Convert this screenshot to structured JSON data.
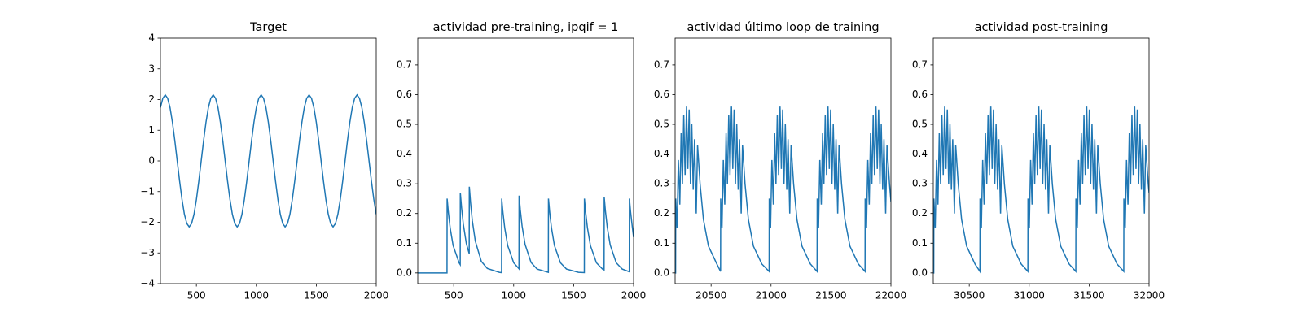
{
  "chart_data": [
    {
      "type": "line",
      "title": "Target",
      "color": "#1f77b4",
      "x": [
        200,
        220,
        240,
        260,
        280,
        300,
        320,
        340,
        360,
        380,
        400,
        420,
        440,
        460,
        480,
        500,
        520,
        540,
        560,
        580,
        600,
        620,
        640,
        660,
        680,
        700,
        720,
        740,
        760,
        780,
        800,
        820,
        840,
        860,
        880,
        900,
        920,
        940,
        960,
        980,
        1000,
        1020,
        1040,
        1060,
        1080,
        1100,
        1120,
        1140,
        1160,
        1180,
        1200,
        1220,
        1240,
        1260,
        1280,
        1300,
        1320,
        1340,
        1360,
        1380,
        1400,
        1420,
        1440,
        1460,
        1480,
        1500,
        1520,
        1540,
        1560,
        1580,
        1600,
        1620,
        1640,
        1660,
        1680,
        1700,
        1720,
        1740,
        1760,
        1780,
        1800,
        1820,
        1840,
        1860,
        1880,
        1900,
        1920,
        1940,
        1960,
        1980,
        2000
      ],
      "values": [
        1.74,
        2.04,
        2.15,
        2.04,
        1.74,
        1.26,
        0.66,
        0,
        -0.66,
        -1.26,
        -1.74,
        -2.04,
        -2.15,
        -2.04,
        -1.74,
        -1.26,
        -0.66,
        0,
        0.66,
        1.26,
        1.74,
        2.04,
        2.15,
        2.04,
        1.74,
        1.26,
        0.66,
        0,
        -0.66,
        -1.26,
        -1.74,
        -2.04,
        -2.15,
        -2.04,
        -1.74,
        -1.26,
        -0.66,
        0,
        0.66,
        1.26,
        1.74,
        2.04,
        2.15,
        2.04,
        1.74,
        1.26,
        0.66,
        0,
        -0.66,
        -1.26,
        -1.74,
        -2.04,
        -2.15,
        -2.04,
        -1.74,
        -1.26,
        -0.66,
        0,
        0.66,
        1.26,
        1.74,
        2.04,
        2.15,
        2.04,
        1.74,
        1.26,
        0.66,
        0,
        -0.66,
        -1.26,
        -1.74,
        -2.04,
        -2.15,
        -2.04,
        -1.74,
        -1.26,
        -0.66,
        0,
        0.66,
        1.26,
        1.74,
        2.04,
        2.15,
        2.04,
        1.74,
        1.26,
        0.66,
        0,
        -0.66,
        -1.26,
        -1.74
      ],
      "xlim": [
        200,
        2000
      ],
      "xticks": [
        500,
        1000,
        1500,
        2000
      ],
      "ylim": [
        -4,
        4
      ],
      "yticks": [
        {
          "value": -4,
          "label": "−4"
        },
        {
          "value": -3,
          "label": "−3"
        },
        {
          "value": -2,
          "label": "−2"
        },
        {
          "value": -1,
          "label": "−1"
        },
        0,
        1,
        2,
        3,
        4
      ]
    },
    {
      "type": "line",
      "title": "actividad pre-training, ipqif = 1",
      "color": "#1f77b4",
      "x": [
        200,
        444,
        445,
        455,
        470,
        495,
        545,
        554,
        555,
        565,
        580,
        605,
        629,
        630,
        640,
        655,
        680,
        730,
        780,
        880,
        899,
        900,
        910,
        925,
        950,
        1000,
        1044,
        1045,
        1055,
        1070,
        1095,
        1145,
        1195,
        1289,
        1290,
        1300,
        1315,
        1340,
        1390,
        1440,
        1540,
        1589,
        1590,
        1600,
        1615,
        1640,
        1690,
        1740,
        1754,
        1755,
        1765,
        1780,
        1805,
        1855,
        1905,
        1964,
        1965,
        1975,
        1990,
        2000
      ],
      "values": [
        0,
        0,
        0.25,
        0.205,
        0.152,
        0.092,
        0.034,
        0.028,
        0.27,
        0.221,
        0.164,
        0.099,
        0.065,
        0.29,
        0.238,
        0.176,
        0.107,
        0.039,
        0.015,
        0.002,
        0.001,
        0.25,
        0.205,
        0.152,
        0.092,
        0.034,
        0.014,
        0.26,
        0.213,
        0.158,
        0.096,
        0.035,
        0.013,
        0.002,
        0.25,
        0.205,
        0.152,
        0.092,
        0.034,
        0.013,
        0.002,
        0.001,
        0.25,
        0.205,
        0.152,
        0.092,
        0.034,
        0.013,
        0.01,
        0.255,
        0.209,
        0.155,
        0.094,
        0.034,
        0.013,
        0.004,
        0.25,
        0.205,
        0.152,
        0.12
      ],
      "xlim": [
        200,
        2000
      ],
      "xticks": [
        500,
        1000,
        1500,
        2000
      ],
      "ylim": [
        -0.036,
        0.79
      ],
      "yticks": [
        {
          "value": 0,
          "label": "0.0"
        },
        0.1,
        0.2,
        0.3,
        0.4,
        0.5,
        0.6,
        0.7
      ]
    },
    {
      "type": "line",
      "title": "actividad último loop de training",
      "color": "#1f77b4",
      "x": [
        20200,
        20204,
        20205,
        20216,
        20227,
        20239,
        20250,
        20261,
        20272,
        20283,
        20295,
        20306,
        20317,
        20328,
        20339,
        20351,
        20362,
        20376,
        20387,
        20408,
        20436,
        20478,
        20548,
        20579,
        20580,
        20591,
        20602,
        20614,
        20625,
        20636,
        20647,
        20658,
        20670,
        20681,
        20692,
        20703,
        20714,
        20726,
        20737,
        20751,
        20762,
        20783,
        20811,
        20853,
        20923,
        20984,
        20985,
        20996,
        21007,
        21019,
        21030,
        21041,
        21052,
        21063,
        21075,
        21086,
        21097,
        21108,
        21119,
        21131,
        21142,
        21156,
        21167,
        21188,
        21216,
        21258,
        21328,
        21384,
        21385,
        21396,
        21407,
        21419,
        21430,
        21441,
        21452,
        21463,
        21475,
        21486,
        21497,
        21508,
        21519,
        21531,
        21542,
        21556,
        21567,
        21588,
        21616,
        21658,
        21728,
        21784,
        21785,
        21796,
        21807,
        21819,
        21830,
        21841,
        21852,
        21863,
        21875,
        21886,
        21897,
        21908,
        21919,
        21931,
        21942,
        21956,
        21967,
        21988,
        22000
      ],
      "values": [
        0,
        0,
        0.25,
        0.15,
        0.38,
        0.23,
        0.47,
        0.3,
        0.53,
        0.33,
        0.56,
        0.35,
        0.55,
        0.3,
        0.5,
        0.28,
        0.45,
        0.2,
        0.43,
        0.3,
        0.18,
        0.09,
        0.03,
        0.005,
        0.25,
        0.15,
        0.38,
        0.23,
        0.47,
        0.3,
        0.53,
        0.33,
        0.56,
        0.35,
        0.55,
        0.3,
        0.5,
        0.28,
        0.45,
        0.2,
        0.43,
        0.3,
        0.18,
        0.09,
        0.03,
        0.005,
        0.25,
        0.15,
        0.38,
        0.23,
        0.47,
        0.3,
        0.53,
        0.33,
        0.56,
        0.35,
        0.55,
        0.3,
        0.5,
        0.28,
        0.45,
        0.2,
        0.43,
        0.3,
        0.18,
        0.09,
        0.03,
        0.005,
        0.25,
        0.15,
        0.38,
        0.23,
        0.47,
        0.3,
        0.53,
        0.33,
        0.56,
        0.35,
        0.55,
        0.3,
        0.5,
        0.28,
        0.45,
        0.2,
        0.43,
        0.3,
        0.18,
        0.09,
        0.03,
        0.005,
        0.25,
        0.15,
        0.38,
        0.23,
        0.47,
        0.3,
        0.53,
        0.33,
        0.56,
        0.35,
        0.55,
        0.3,
        0.5,
        0.28,
        0.45,
        0.2,
        0.43,
        0.3,
        0.24
      ],
      "xlim": [
        20200,
        22000
      ],
      "xticks": [
        20500,
        21000,
        21500,
        22000
      ],
      "ylim": [
        -0.036,
        0.79
      ],
      "yticks": [
        {
          "value": 0,
          "label": "0.0"
        },
        0.1,
        0.2,
        0.3,
        0.4,
        0.5,
        0.6,
        0.7
      ]
    },
    {
      "type": "line",
      "title": "actividad post-training",
      "color": "#1f77b4",
      "x": [
        30200,
        30204,
        30205,
        30216,
        30227,
        30239,
        30250,
        30261,
        30272,
        30283,
        30295,
        30306,
        30317,
        30328,
        30339,
        30351,
        30362,
        30376,
        30387,
        30408,
        30436,
        30478,
        30548,
        30589,
        30590,
        30601,
        30612,
        30624,
        30635,
        30646,
        30657,
        30668,
        30680,
        30691,
        30702,
        30713,
        30724,
        30736,
        30747,
        30761,
        30772,
        30793,
        30821,
        30863,
        30933,
        30989,
        30990,
        31001,
        31012,
        31024,
        31035,
        31046,
        31057,
        31068,
        31080,
        31091,
        31102,
        31113,
        31124,
        31136,
        31147,
        31161,
        31172,
        31193,
        31221,
        31263,
        31333,
        31389,
        31390,
        31401,
        31412,
        31424,
        31435,
        31446,
        31457,
        31468,
        31480,
        31491,
        31502,
        31513,
        31524,
        31536,
        31547,
        31561,
        31572,
        31593,
        31621,
        31663,
        31733,
        31789,
        31790,
        31801,
        31812,
        31824,
        31835,
        31846,
        31857,
        31868,
        31880,
        31891,
        31902,
        31913,
        31924,
        31936,
        31947,
        31961,
        31972,
        31993,
        32000
      ],
      "values": [
        0,
        0,
        0.25,
        0.15,
        0.38,
        0.23,
        0.47,
        0.3,
        0.53,
        0.33,
        0.56,
        0.35,
        0.55,
        0.3,
        0.5,
        0.28,
        0.45,
        0.2,
        0.43,
        0.3,
        0.18,
        0.09,
        0.03,
        0.005,
        0.25,
        0.15,
        0.38,
        0.23,
        0.47,
        0.3,
        0.53,
        0.33,
        0.56,
        0.35,
        0.55,
        0.3,
        0.5,
        0.28,
        0.45,
        0.2,
        0.43,
        0.3,
        0.18,
        0.09,
        0.03,
        0.005,
        0.25,
        0.15,
        0.38,
        0.23,
        0.47,
        0.3,
        0.53,
        0.33,
        0.56,
        0.35,
        0.55,
        0.3,
        0.5,
        0.28,
        0.45,
        0.2,
        0.43,
        0.3,
        0.18,
        0.09,
        0.03,
        0.005,
        0.25,
        0.15,
        0.38,
        0.23,
        0.47,
        0.3,
        0.53,
        0.33,
        0.56,
        0.35,
        0.55,
        0.3,
        0.5,
        0.28,
        0.45,
        0.2,
        0.43,
        0.3,
        0.18,
        0.09,
        0.03,
        0.005,
        0.25,
        0.15,
        0.38,
        0.23,
        0.47,
        0.3,
        0.53,
        0.33,
        0.56,
        0.35,
        0.55,
        0.3,
        0.5,
        0.28,
        0.45,
        0.2,
        0.43,
        0.3,
        0.27
      ],
      "xlim": [
        30200,
        32000
      ],
      "xticks": [
        30500,
        31000,
        31500,
        32000
      ],
      "ylim": [
        -0.036,
        0.79
      ],
      "yticks": [
        {
          "value": 0,
          "label": "0.0"
        },
        0.1,
        0.2,
        0.3,
        0.4,
        0.5,
        0.6,
        0.7
      ]
    }
  ]
}
